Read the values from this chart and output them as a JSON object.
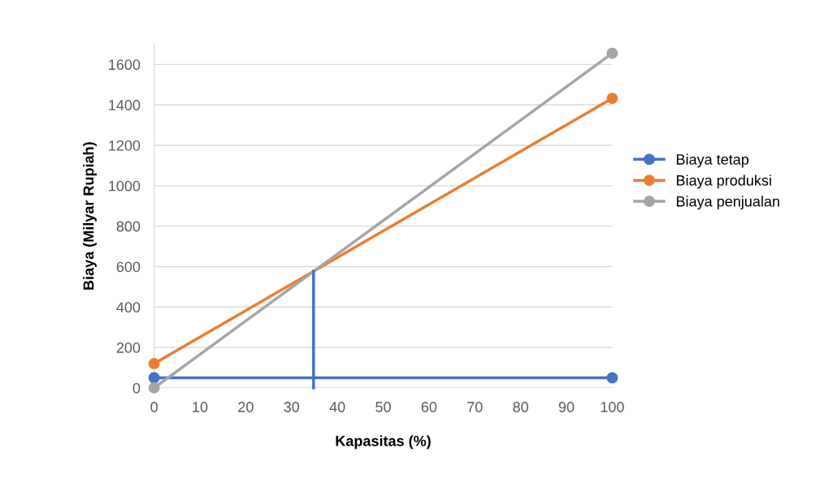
{
  "chart_data": {
    "type": "line",
    "xlabel": "Kapasitas (%)",
    "ylabel": "Biaya (Milyar Rupiah)",
    "x": [
      0,
      100
    ],
    "series": [
      {
        "name": "Biaya tetap",
        "color": "#4472c4",
        "values": [
          50,
          50
        ]
      },
      {
        "name": "Biaya produksi",
        "color": "#ed7d31",
        "values": [
          120,
          1432
        ]
      },
      {
        "name": "Biaya penjualan",
        "color": "#a5a5a5",
        "values": [
          0,
          1655
        ]
      },
      {
        "color": "#4472c4",
        "x": [
          34.8,
          34.8
        ],
        "values": [
          577,
          0
        ],
        "marker": "none"
      }
    ],
    "xlim": [
      0,
      100
    ],
    "xticks": [
      0,
      10,
      20,
      30,
      40,
      50,
      60,
      70,
      80,
      90,
      100
    ],
    "ylim": [
      0,
      1700
    ],
    "yticks": [
      0,
      200,
      400,
      600,
      800,
      1000,
      1200,
      1400,
      1600
    ],
    "grid": "y",
    "legend": "right",
    "marker": "circle"
  }
}
